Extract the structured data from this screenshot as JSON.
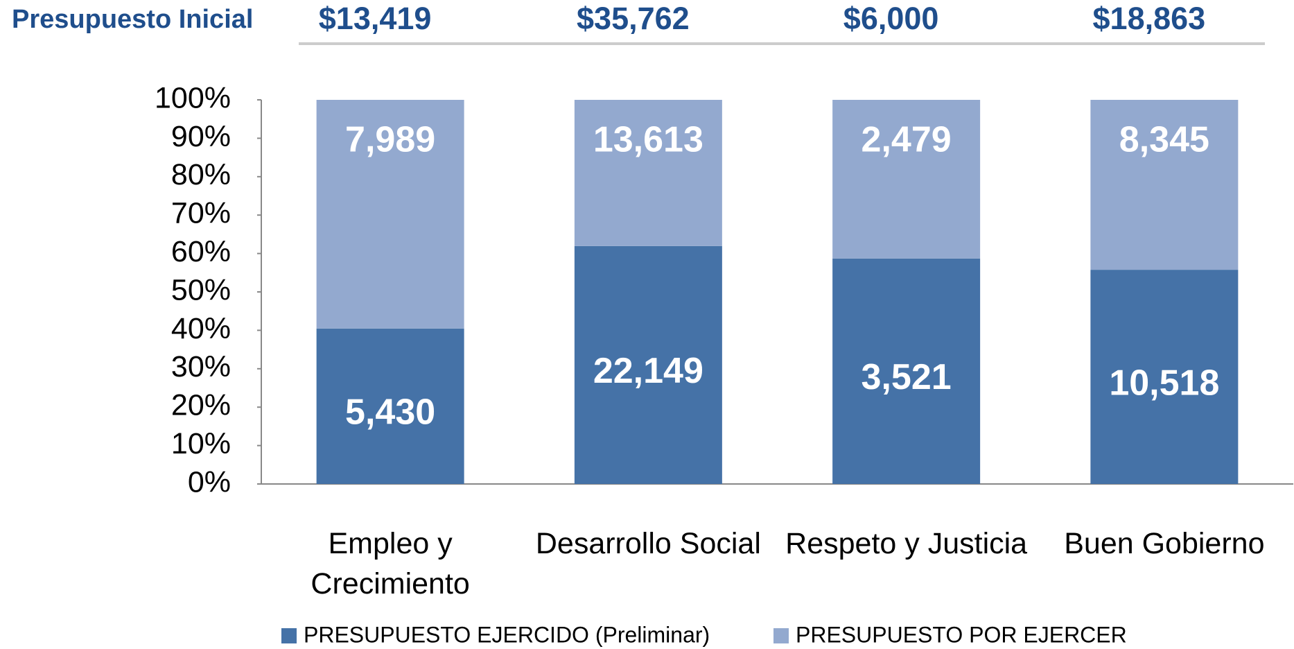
{
  "header": {
    "title": "Presupuesto Inicial",
    "values": [
      "$13,419",
      "$35,762",
      "$6,000",
      "$18,863"
    ]
  },
  "chart_data": {
    "type": "bar",
    "stacked": "percent",
    "categories": [
      "Empleo y Crecimiento",
      "Desarrollo Social",
      "Respeto y Justicia",
      "Buen Gobierno"
    ],
    "series": [
      {
        "name": "PRESUPUESTO EJERCIDO (Preliminar)",
        "color": "#4572a7",
        "values": [
          5430,
          22149,
          3521,
          10518
        ],
        "value_labels": [
          "5,430",
          "22,149",
          "3,521",
          "10,518"
        ]
      },
      {
        "name": "PRESUPUESTO POR EJERCER",
        "color": "#93a9cf",
        "values": [
          7989,
          13613,
          2479,
          8345
        ],
        "value_labels": [
          "7,989",
          "13,613",
          "2,479",
          "8,345"
        ]
      }
    ],
    "ylim": [
      0,
      100
    ],
    "yticks": [
      {
        "value": 0,
        "label": "0%"
      },
      {
        "value": 10,
        "label": "10%"
      },
      {
        "value": 20,
        "label": "20%"
      },
      {
        "value": 30,
        "label": "30%"
      },
      {
        "value": 40,
        "label": "40%"
      },
      {
        "value": 50,
        "label": "50%"
      },
      {
        "value": 60,
        "label": "60%"
      },
      {
        "value": 70,
        "label": "70%"
      },
      {
        "value": 80,
        "label": "80%"
      },
      {
        "value": 90,
        "label": "90%"
      },
      {
        "value": 100,
        "label": "100%"
      }
    ],
    "grid": false,
    "legend": "bottom"
  }
}
